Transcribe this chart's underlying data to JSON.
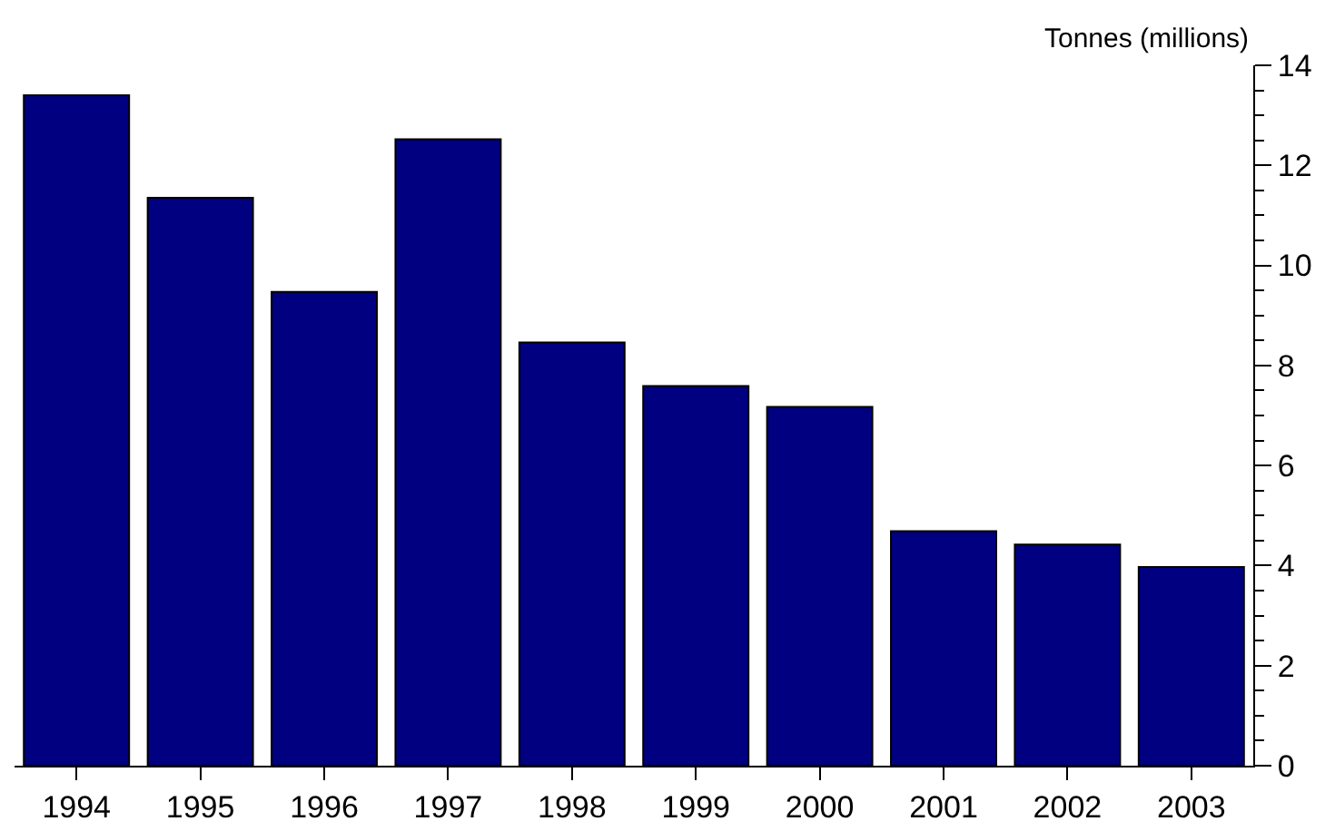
{
  "chart_data": {
    "type": "bar",
    "ylabel": "Tonnes (millions)",
    "categories": [
      "1994",
      "1995",
      "1996",
      "1997",
      "1998",
      "1999",
      "2000",
      "2001",
      "2002",
      "2003"
    ],
    "values": [
      13.4,
      11.35,
      9.47,
      12.52,
      8.46,
      7.59,
      7.17,
      4.69,
      4.42,
      3.97
    ],
    "color": "#000080",
    "ylim": [
      0,
      14
    ],
    "yticks": [
      0,
      {
        "value": 0.5,
        "label": null
      },
      {
        "value": 1,
        "label": null
      },
      {
        "value": 1.5,
        "label": null
      },
      2,
      {
        "value": 2.5,
        "label": null
      },
      {
        "value": 3,
        "label": null
      },
      {
        "value": 3.5,
        "label": null
      },
      4,
      {
        "value": 4.5,
        "label": null
      },
      {
        "value": 5,
        "label": null
      },
      {
        "value": 5.5,
        "label": null
      },
      6,
      {
        "value": 6.5,
        "label": null
      },
      {
        "value": 7,
        "label": null
      },
      {
        "value": 7.5,
        "label": null
      },
      8,
      {
        "value": 8.5,
        "label": null
      },
      {
        "value": 9,
        "label": null
      },
      {
        "value": 9.5,
        "label": null
      },
      10,
      {
        "value": 10.5,
        "label": null
      },
      {
        "value": 11,
        "label": null
      },
      {
        "value": 11.5,
        "label": null
      },
      12,
      {
        "value": 12.5,
        "label": null
      },
      {
        "value": 13,
        "label": null
      },
      {
        "value": 13.5,
        "label": null
      },
      14
    ],
    "grid": false
  }
}
